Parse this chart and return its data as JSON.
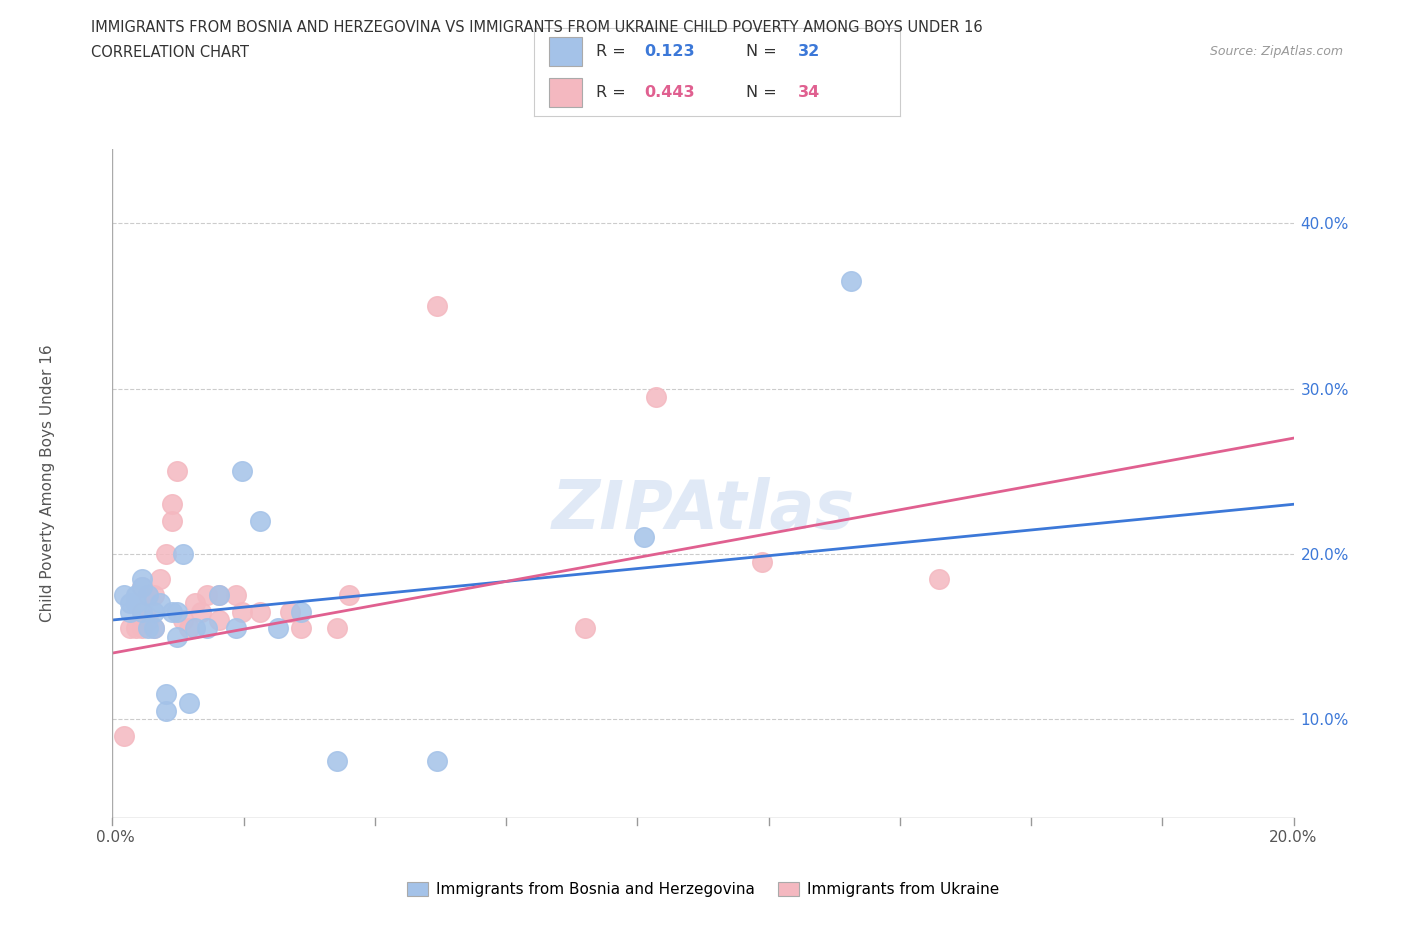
{
  "title_line1": "IMMIGRANTS FROM BOSNIA AND HERZEGOVINA VS IMMIGRANTS FROM UKRAINE CHILD POVERTY AMONG BOYS UNDER 16",
  "title_line2": "CORRELATION CHART",
  "source": "Source: ZipAtlas.com",
  "ylabel": "Child Poverty Among Boys Under 16",
  "ytick_values": [
    0.1,
    0.2,
    0.3,
    0.4
  ],
  "xlim": [
    0.0,
    0.2
  ],
  "ylim": [
    0.04,
    0.445
  ],
  "watermark": "ZIPAtlas",
  "bosnia_color": "#a4c2e8",
  "ukraine_color": "#f4b8c0",
  "bosnia_line_color": "#3c78d8",
  "ukraine_line_color": "#e06090",
  "bosnia_label": "Immigrants from Bosnia and Herzegovina",
  "ukraine_label": "Immigrants from Ukraine",
  "R_bosnia": "0.123",
  "N_bosnia": "32",
  "R_ukraine": "0.443",
  "N_ukraine": "34",
  "bosnia_scatter_x": [
    0.002,
    0.003,
    0.003,
    0.004,
    0.004,
    0.005,
    0.005,
    0.005,
    0.006,
    0.006,
    0.007,
    0.007,
    0.008,
    0.009,
    0.009,
    0.01,
    0.011,
    0.011,
    0.012,
    0.013,
    0.014,
    0.016,
    0.018,
    0.021,
    0.022,
    0.025,
    0.028,
    0.032,
    0.038,
    0.055,
    0.09,
    0.125
  ],
  "bosnia_scatter_y": [
    0.175,
    0.165,
    0.17,
    0.17,
    0.175,
    0.165,
    0.18,
    0.185,
    0.155,
    0.175,
    0.155,
    0.165,
    0.17,
    0.105,
    0.115,
    0.165,
    0.15,
    0.165,
    0.2,
    0.11,
    0.155,
    0.155,
    0.175,
    0.155,
    0.25,
    0.22,
    0.155,
    0.165,
    0.075,
    0.075,
    0.21,
    0.365
  ],
  "ukraine_scatter_x": [
    0.002,
    0.003,
    0.004,
    0.005,
    0.005,
    0.005,
    0.006,
    0.006,
    0.007,
    0.007,
    0.008,
    0.009,
    0.01,
    0.01,
    0.011,
    0.012,
    0.013,
    0.014,
    0.015,
    0.016,
    0.018,
    0.018,
    0.021,
    0.022,
    0.025,
    0.03,
    0.032,
    0.038,
    0.04,
    0.055,
    0.08,
    0.092,
    0.11,
    0.14
  ],
  "ukraine_scatter_y": [
    0.09,
    0.155,
    0.155,
    0.155,
    0.165,
    0.18,
    0.16,
    0.175,
    0.155,
    0.175,
    0.185,
    0.2,
    0.22,
    0.23,
    0.25,
    0.16,
    0.155,
    0.17,
    0.165,
    0.175,
    0.16,
    0.175,
    0.175,
    0.165,
    0.165,
    0.165,
    0.155,
    0.155,
    0.175,
    0.35,
    0.155,
    0.295,
    0.195,
    0.185
  ],
  "bosnia_trend_x": [
    0.0,
    0.2
  ],
  "bosnia_trend_y": [
    0.16,
    0.23
  ],
  "ukraine_trend_x": [
    0.0,
    0.2
  ],
  "ukraine_trend_y": [
    0.14,
    0.27
  ],
  "grid_color": "#cccccc",
  "background_color": "#ffffff"
}
